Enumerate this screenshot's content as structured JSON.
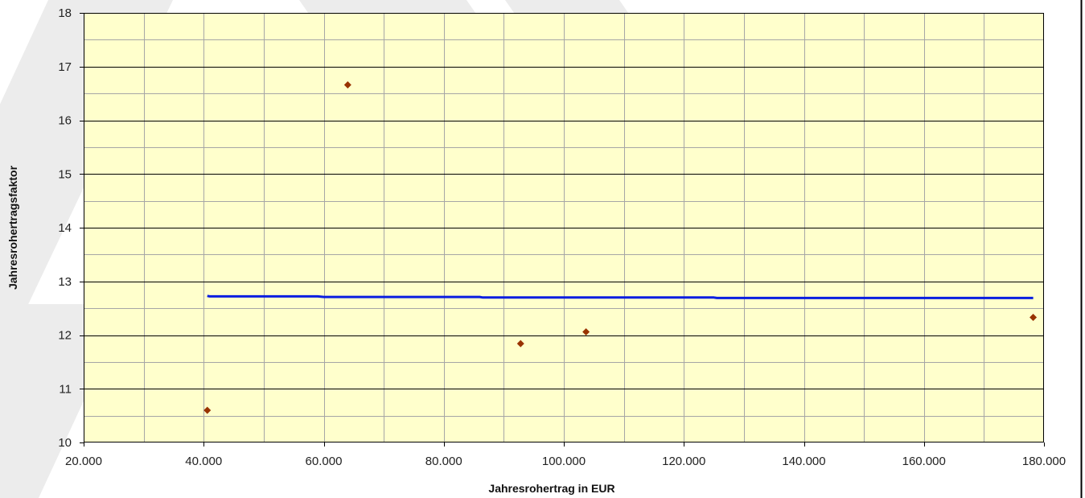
{
  "chart_data": {
    "type": "scatter",
    "xlabel": "Jahresrohertrag in EUR",
    "ylabel": "Jahresrohertragsfaktor",
    "xlim": [
      20000,
      180000
    ],
    "ylim": [
      10,
      18
    ],
    "x_major_step": 20000,
    "x_minor_step": 10000,
    "y_major_step": 1,
    "y_minor_step": 0.5,
    "x_tick_labels": [
      "20.000",
      "40.000",
      "60.000",
      "80.000",
      "100.000",
      "120.000",
      "140.000",
      "160.000",
      "180.000"
    ],
    "y_tick_labels": [
      "10",
      "11",
      "12",
      "13",
      "14",
      "15",
      "16",
      "17",
      "18"
    ],
    "grid": true,
    "series": [
      {
        "type": "scatter",
        "marker": "diamond",
        "color": "#993300",
        "points": [
          {
            "x": 40600,
            "y": 10.6
          },
          {
            "x": 64000,
            "y": 16.66
          },
          {
            "x": 92800,
            "y": 11.84
          },
          {
            "x": 103700,
            "y": 12.06
          },
          {
            "x": 178200,
            "y": 12.33
          }
        ]
      },
      {
        "type": "line",
        "role": "trendline",
        "color": "#0a1ee0",
        "points": [
          {
            "x": 40600,
            "y": 12.73
          },
          {
            "x": 41000,
            "y": 12.72
          },
          {
            "x": 59000,
            "y": 12.72
          },
          {
            "x": 60000,
            "y": 12.71
          },
          {
            "x": 86000,
            "y": 12.71
          },
          {
            "x": 86500,
            "y": 12.7
          },
          {
            "x": 125000,
            "y": 12.7
          },
          {
            "x": 125500,
            "y": 12.69
          },
          {
            "x": 178200,
            "y": 12.69
          }
        ]
      }
    ],
    "colors": {
      "plot_background": "#ffffcc",
      "major_grid": "#000000",
      "minor_grid": "#a6a6a6"
    }
  }
}
